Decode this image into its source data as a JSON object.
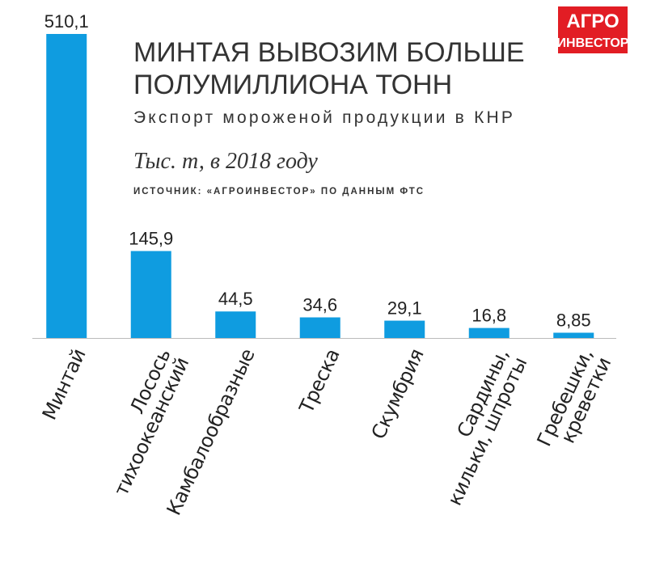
{
  "chart_data": {
    "type": "bar",
    "title_line1": "МИНТАЯ ВЫВОЗИМ БОЛЬШЕ",
    "title_line2": "ПОЛУМИЛЛИОНА ТОНН",
    "subtitle": "Экспорт мороженой продукции в КНР",
    "units": "Тыс. т, в 2018 году",
    "source": "ИСТОЧНИК: «АГРОИНВЕСТОР» ПО ДАННЫМ ФТС",
    "logo_line1": "АГРО",
    "logo_line2": "ИНВЕСТОР",
    "categories": [
      "Минтай",
      "Лосось\nтихоокеанский",
      "Камбалообразные",
      "Треска",
      "Скумбрия",
      "Сардины,\nкильки, шпроты",
      "Гребешки,\nкреветки"
    ],
    "values": [
      510.1,
      145.9,
      44.5,
      34.6,
      29.1,
      16.8,
      8.85
    ],
    "value_labels": [
      "510,1",
      "145,9",
      "44,5",
      "34,6",
      "29,1",
      "16,8",
      "8,85"
    ],
    "color": "#0f9ce0"
  }
}
